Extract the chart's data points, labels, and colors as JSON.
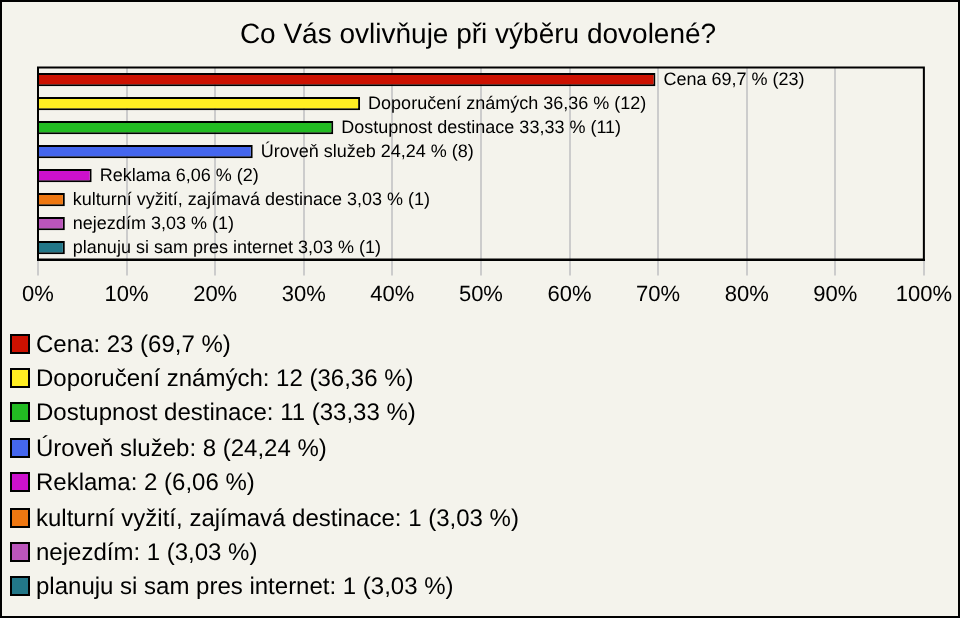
{
  "chart_data": {
    "type": "bar",
    "orientation": "horizontal",
    "stacked": true,
    "title": "Co Vás ovlivňuje při výběru dovolené?",
    "categories": [
      null,
      null,
      null,
      null,
      null,
      null,
      null,
      null
    ],
    "series": [
      {
        "name": "Cena: 23 (69,7 %)",
        "color": "#cc1100",
        "values": [
          69.7,
          null,
          null,
          null,
          null,
          null,
          null,
          null
        ],
        "value_labels": [
          "Cena 69,7 % (23)",
          null,
          null,
          null,
          null,
          null,
          null,
          null
        ]
      },
      {
        "name": "Doporučení známých: 12 (36,36 %)",
        "color": "#ffee22",
        "values": [
          null,
          36.36,
          null,
          null,
          null,
          null,
          null,
          null
        ],
        "value_labels": [
          null,
          "Doporučení známých 36,36 % (12)",
          null,
          null,
          null,
          null,
          null,
          null
        ]
      },
      {
        "name": "Dostupnost destinace: 11 (33,33 %)",
        "color": "#22bb22",
        "values": [
          null,
          null,
          33.33,
          null,
          null,
          null,
          null,
          null
        ],
        "value_labels": [
          null,
          null,
          "Dostupnost destinace 33,33 % (11)",
          null,
          null,
          null,
          null,
          null
        ]
      },
      {
        "name": "Úroveň služeb: 8 (24,24 %)",
        "color": "#4466ee",
        "values": [
          null,
          null,
          null,
          24.24,
          null,
          null,
          null,
          null
        ],
        "value_labels": [
          null,
          null,
          null,
          "Úroveň služeb 24,24 % (8)",
          null,
          null,
          null,
          null
        ]
      },
      {
        "name": "Reklama: 2 (6,06 %)",
        "color": "#cc11cc",
        "values": [
          null,
          null,
          null,
          null,
          6.06,
          null,
          null,
          null
        ],
        "value_labels": [
          null,
          null,
          null,
          null,
          "Reklama 6,06 % (2)",
          null,
          null,
          null
        ]
      },
      {
        "name": "kulturní vyžití, zajímavá destinace: 1 (3,03 %)",
        "color": "#ee7711",
        "values": [
          null,
          null,
          null,
          null,
          null,
          3.03,
          null,
          null
        ],
        "value_labels": [
          null,
          null,
          null,
          null,
          null,
          "kulturní vyžití, zajímavá destinace 3,03 % (1)",
          null,
          null
        ]
      },
      {
        "name": "nejezdím: 1 (3,03 %)",
        "color": "#bb55bb",
        "values": [
          null,
          null,
          null,
          null,
          null,
          null,
          3.03,
          null
        ],
        "value_labels": [
          null,
          null,
          null,
          null,
          null,
          null,
          "nejezdím 3,03 % (1)",
          null
        ]
      },
      {
        "name": "planuju si sam pres internet: 1 (3,03 %)",
        "color": "#227788",
        "values": [
          null,
          null,
          null,
          null,
          null,
          null,
          null,
          3.03
        ],
        "value_labels": [
          null,
          null,
          null,
          null,
          null,
          null,
          null,
          "planuju si sam pres internet 3,03 % (1)"
        ]
      }
    ],
    "xlim": [
      0,
      100
    ],
    "xticks": [
      {
        "value": 0,
        "label": "0%"
      },
      {
        "value": 10,
        "label": "10%"
      },
      {
        "value": 20,
        "label": "20%"
      },
      {
        "value": 30,
        "label": "30%"
      },
      {
        "value": 40,
        "label": "40%"
      },
      {
        "value": 50,
        "label": "50%"
      },
      {
        "value": 60,
        "label": "60%"
      },
      {
        "value": 70,
        "label": "70%"
      },
      {
        "value": 80,
        "label": "80%"
      },
      {
        "value": 90,
        "label": "90%"
      },
      {
        "value": 100,
        "label": "100%"
      }
    ],
    "grid": "x",
    "legend": "bottom",
    "tick_labels": "x"
  }
}
